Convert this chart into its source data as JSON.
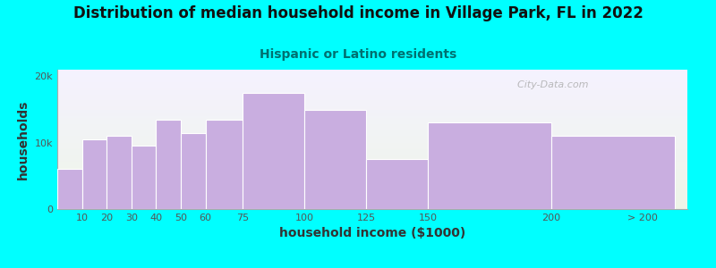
{
  "title": "Distribution of median household income in Village Park, FL in 2022",
  "subtitle": "Hispanic or Latino residents",
  "xlabel": "household income ($1000)",
  "ylabel": "households",
  "bar_labels": [
    "10",
    "20",
    "30",
    "40",
    "50",
    "60",
    "75",
    "100",
    "125",
    "150",
    "200",
    "> 200"
  ],
  "bar_values": [
    6000,
    10500,
    11000,
    9500,
    13500,
    11500,
    13500,
    17500,
    15000,
    7500,
    13000,
    11000
  ],
  "bar_color": "#c9aee0",
  "bar_edge_color": "#ffffff",
  "background_color": "#00ffff",
  "plot_bg_top": "#eef5e8",
  "plot_bg_bottom": "#f5f2ff",
  "title_color": "#111111",
  "subtitle_color": "#007070",
  "axis_label_color": "#333333",
  "tick_color": "#555555",
  "ylim": [
    0,
    21000
  ],
  "yticks": [
    0,
    10000,
    20000
  ],
  "ytick_labels": [
    "0",
    "10k",
    "20k"
  ],
  "watermark": "  City-Data.com",
  "title_fontsize": 12,
  "subtitle_fontsize": 10,
  "axis_label_fontsize": 10,
  "tick_fontsize": 8,
  "bin_edges": [
    0,
    10,
    20,
    30,
    40,
    50,
    60,
    75,
    100,
    125,
    150,
    200,
    250
  ],
  "tick_positions": [
    10,
    20,
    30,
    40,
    50,
    60,
    75,
    100,
    125,
    150,
    200,
    237
  ]
}
